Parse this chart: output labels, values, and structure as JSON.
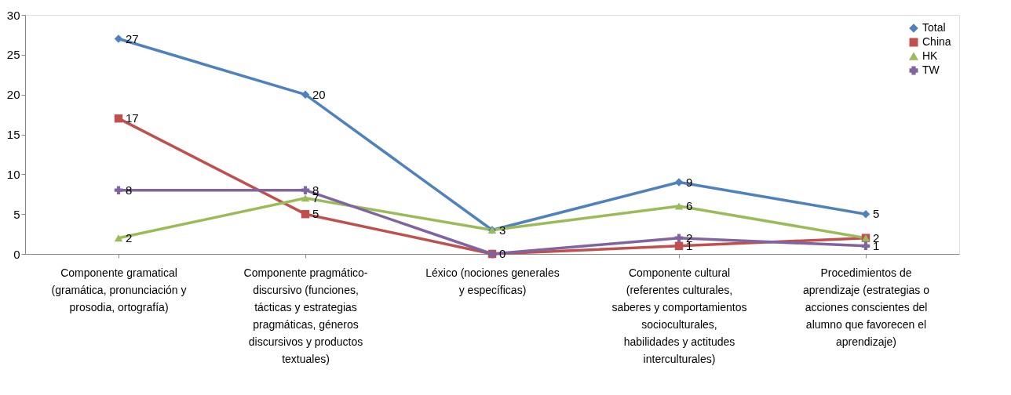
{
  "chart_data": {
    "type": "line",
    "categories": [
      "Componente gramatical (gramática, pronunciación y prosodia, ortografía)",
      "Componente pragmático-discursivo (funciones, tácticas y estrategias pragmáticas, géneros discursivos y productos textuales)",
      "Léxico (nociones generales y específicas)",
      "Componente cultural (referentes culturales, saberes y comportamientos socioculturales, habilidades y actitudes interculturales)",
      "Procedimientos de aprendizaje (estrategias  o acciones conscientes del alumno que favorecen el aprendizaje)"
    ],
    "series": [
      {
        "name": "Total",
        "color": "#4f81bd",
        "marker": "diamond",
        "values": [
          27,
          20,
          3,
          9,
          5
        ]
      },
      {
        "name": "China",
        "color": "#c0504d",
        "marker": "square",
        "values": [
          17,
          5,
          0,
          1,
          2
        ]
      },
      {
        "name": "HK",
        "color": "#9bbb59",
        "marker": "triangle",
        "values": [
          2,
          7,
          3,
          6,
          2
        ],
        "value_labels": [
          "2",
          "7",
          null,
          "6",
          null
        ]
      },
      {
        "name": "TW",
        "color": "#8064a2",
        "marker": "cross",
        "values": [
          8,
          8,
          0,
          2,
          1
        ],
        "value_labels": [
          "8",
          "8",
          null,
          "2",
          "1"
        ]
      }
    ],
    "ylim": [
      0,
      30
    ],
    "yticks": [
      0,
      5,
      10,
      15,
      20,
      25,
      30
    ],
    "legend": "top right",
    "data_labels": true
  }
}
